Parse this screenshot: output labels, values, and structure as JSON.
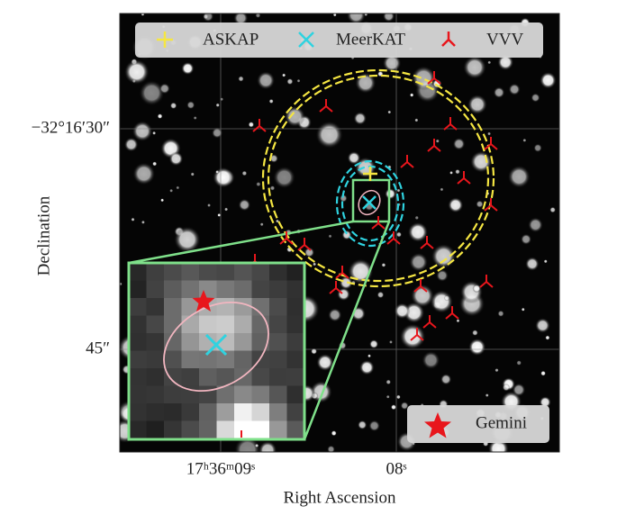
{
  "axes": {
    "x_label": "Right Ascension",
    "y_label": "Declination",
    "x_ticks": [
      "17ʰ36ᵐ09ˢ",
      "08ˢ"
    ],
    "y_ticks": [
      "−32°16′30″",
      "45″"
    ]
  },
  "legend": [
    "ASKAP",
    "MeerKAT",
    "VVV"
  ],
  "inset_legend": [
    "Gemini"
  ]
}
